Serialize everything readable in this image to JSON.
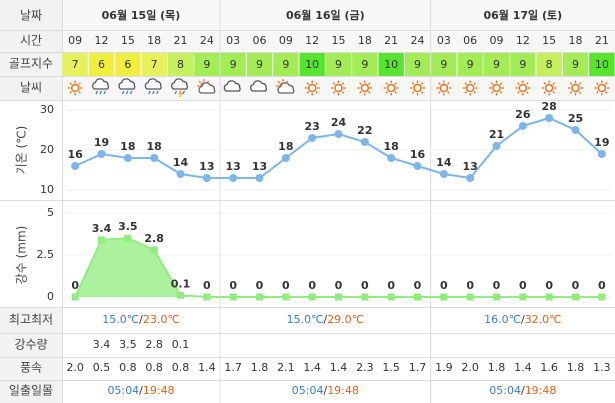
{
  "labels": {
    "date": "날짜",
    "time": "시간",
    "golf": "골프지수",
    "weather": "날씨",
    "max_min": "최고최저",
    "precip": "강수량",
    "wind": "풍속",
    "sun": "일출일몰"
  },
  "dates": [
    "06월 15일 (목)",
    "06월 16일 (금)",
    "06월 17일 (토)"
  ],
  "day_columns": [
    6,
    8,
    7
  ],
  "times": [
    "09",
    "12",
    "15",
    "18",
    "21",
    "24",
    "03",
    "06",
    "09",
    "12",
    "15",
    "18",
    "21",
    "24",
    "03",
    "06",
    "09",
    "12",
    "15",
    "18",
    "21"
  ],
  "golf_index": [
    7,
    6,
    6,
    7,
    8,
    9,
    9,
    9,
    9,
    10,
    9,
    9,
    10,
    9,
    9,
    9,
    9,
    9,
    8,
    9,
    10
  ],
  "golf_colors": {
    "6": "#f0ee3e",
    "7": "#e6f25c",
    "8": "#c6ef5e",
    "9": "#a4ec56",
    "10": "#56e42e"
  },
  "temp_chart": {
    "type": "line",
    "ylabel": "기온 (℃)",
    "ylim": [
      10,
      30
    ],
    "yticks": [
      10,
      20,
      30
    ],
    "color": "#7cb5ec",
    "values": [
      16,
      19,
      18,
      18,
      14,
      13,
      13,
      13,
      18,
      23,
      24,
      22,
      18,
      16,
      14,
      13,
      21,
      26,
      28,
      25,
      19
    ]
  },
  "precip_chart": {
    "type": "area",
    "ylabel": "강수 (mm)",
    "ylim": [
      0,
      5
    ],
    "yticks": [
      0,
      2.5,
      5
    ],
    "color": "#90ed7d",
    "values": [
      0,
      3.4,
      3.5,
      2.8,
      0.1,
      0,
      0,
      0,
      0,
      0,
      0,
      0,
      0,
      0,
      0,
      0,
      0,
      0,
      0,
      0,
      0
    ]
  },
  "max_min": [
    {
      "min": "15.0℃",
      "max": "23.0℃"
    },
    {
      "min": "15.0℃",
      "max": "29.0℃"
    },
    {
      "min": "16.0℃",
      "max": "32.0℃"
    }
  ],
  "separator": "/",
  "precip_amounts": [
    null,
    3.4,
    3.5,
    2.8,
    0.1,
    null,
    null,
    null,
    null,
    null,
    null,
    null,
    null,
    null,
    null,
    null,
    null,
    null,
    null,
    null,
    null
  ],
  "wind": [
    "2.0",
    "0.5",
    "0.8",
    "0.8",
    "0.8",
    "1.4",
    "1.7",
    "1.8",
    "2.1",
    "1.4",
    "1.4",
    "2.3",
    "1.5",
    "1.7",
    "1.9",
    "2.0",
    "1.8",
    "1.4",
    "1.6",
    "1.8",
    "1.3"
  ],
  "sun": [
    {
      "rise": "05:04",
      "set": "19:48"
    },
    {
      "rise": "05:04",
      "set": "19:48"
    },
    {
      "rise": "05:04",
      "set": "19:48"
    }
  ]
}
